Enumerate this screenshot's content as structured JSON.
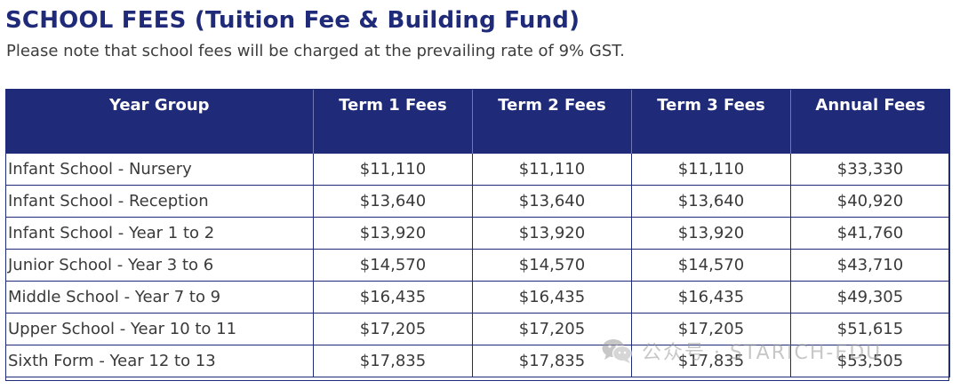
{
  "header": {
    "title": "SCHOOL FEES (Tuition Fee & Building Fund)",
    "subtitle": "Please note that school fees will be charged at the prevailing rate of 9% GST."
  },
  "colors": {
    "header_bg": "#1f2a78",
    "title_text": "#1f2a78",
    "cell_border": "#1f2a78",
    "body_text": "#3a3a3a"
  },
  "table": {
    "columns": [
      "Year Group",
      "Term 1 Fees",
      "Term 2 Fees",
      "Term 3 Fees",
      "Annual Fees"
    ],
    "rows": [
      [
        "Infant School - Nursery",
        "$11,110",
        "$11,110",
        "$11,110",
        "$33,330"
      ],
      [
        "Infant School - Reception",
        "$13,640",
        "$13,640",
        "$13,640",
        "$40,920"
      ],
      [
        "Infant School - Year 1 to 2",
        "$13,920",
        "$13,920",
        "$13,920",
        "$41,760"
      ],
      [
        "Junior School - Year 3 to 6",
        "$14,570",
        "$14,570",
        "$14,570",
        "$43,710"
      ],
      [
        "Middle School - Year 7 to 9",
        "$16,435",
        "$16,435",
        "$16,435",
        "$49,305"
      ],
      [
        "Upper School - Year 10 to 11",
        "$17,205",
        "$17,205",
        "$17,205",
        "$51,615"
      ],
      [
        "Sixth Form - Year 12 to 13",
        "$17,835",
        "$17,835",
        "$17,835",
        "$53,505"
      ]
    ]
  },
  "watermark": {
    "icon": "wechat-icon",
    "text": "公众号 · STARICH-EDU"
  }
}
